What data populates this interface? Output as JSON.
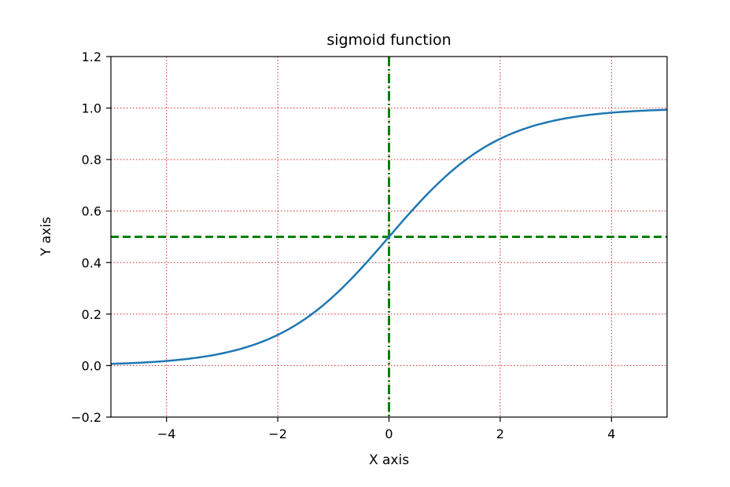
{
  "chart_data": {
    "type": "line",
    "title": "sigmoid function",
    "xlabel": "X axis",
    "ylabel": "Y axis",
    "xlim": [
      -5,
      5
    ],
    "ylim": [
      -0.2,
      1.2
    ],
    "x_ticks": [
      -4,
      -2,
      0,
      2,
      4
    ],
    "x_tick_labels": [
      "−4",
      "−2",
      "0",
      "2",
      "4"
    ],
    "y_ticks": [
      -0.2,
      0.0,
      0.2,
      0.4,
      0.6,
      0.8,
      1.0,
      1.2
    ],
    "y_tick_labels": [
      "−0.2",
      "0.0",
      "0.2",
      "0.4",
      "0.6",
      "0.8",
      "1.0",
      "1.2"
    ],
    "grid": true,
    "series": [
      {
        "x": [
          -5,
          -4.5,
          -4,
          -3.5,
          -3,
          -2.5,
          -2,
          -1.5,
          -1,
          -0.5,
          0,
          0.5,
          1,
          1.5,
          2,
          2.5,
          3,
          3.5,
          4,
          4.5,
          5
        ],
        "y": [
          0.0067,
          0.011,
          0.018,
          0.029,
          0.047,
          0.076,
          0.119,
          0.182,
          0.269,
          0.378,
          0.5,
          0.622,
          0.731,
          0.818,
          0.881,
          0.924,
          0.953,
          0.971,
          0.982,
          0.989,
          0.9933
        ],
        "color": "#1f77b4"
      }
    ],
    "reference_lines": [
      {
        "orientation": "horizontal",
        "value": 0.5,
        "color": "#008000",
        "style": "dashed"
      },
      {
        "orientation": "vertical",
        "value": 0,
        "color": "#008000",
        "style": "dashdot"
      }
    ],
    "grid_color": "#d62728"
  }
}
